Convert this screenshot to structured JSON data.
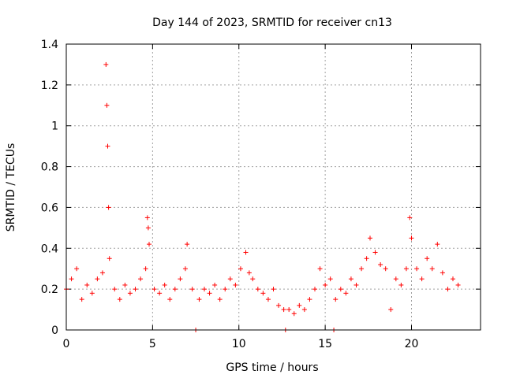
{
  "chart_data": {
    "type": "scatter",
    "title": "Day 144 of 2023, SRMTID for receiver cn13",
    "xlabel": "GPS time / hours",
    "ylabel": "SRMTID / TECUs",
    "xlim": [
      0,
      24
    ],
    "ylim": [
      0,
      1.4
    ],
    "x_ticks": [
      0,
      5,
      10,
      15,
      20
    ],
    "x_tick_labels": [
      "0",
      "5",
      "10",
      "15",
      "20"
    ],
    "y_ticks": [
      0,
      0.2,
      0.4,
      0.6,
      0.8,
      1.0,
      1.2,
      1.4
    ],
    "y_tick_labels": [
      "0",
      "0.2",
      "0.4",
      "0.6",
      "0.8",
      "1",
      "1.2",
      "1.4"
    ],
    "grid": true,
    "marker": "plus",
    "series": [
      {
        "name": "SRMTID",
        "color": "#ff0000",
        "x": [
          0.0,
          0.3,
          0.6,
          0.9,
          1.2,
          1.5,
          1.8,
          2.1,
          2.3,
          2.35,
          2.4,
          2.45,
          2.5,
          2.8,
          3.1,
          3.4,
          3.7,
          4.0,
          4.3,
          4.6,
          4.7,
          4.75,
          4.8,
          5.1,
          5.4,
          5.7,
          6.0,
          6.3,
          6.6,
          6.9,
          7.0,
          7.3,
          7.5,
          7.7,
          8.0,
          8.3,
          8.6,
          8.9,
          9.2,
          9.5,
          9.8,
          10.1,
          10.4,
          10.6,
          10.8,
          11.1,
          11.4,
          11.7,
          12.0,
          12.3,
          12.6,
          12.7,
          12.9,
          13.2,
          13.5,
          13.8,
          14.1,
          14.4,
          14.7,
          15.0,
          15.3,
          15.5,
          15.6,
          15.9,
          16.2,
          16.5,
          16.8,
          17.1,
          17.4,
          17.6,
          17.9,
          18.2,
          18.5,
          18.8,
          19.1,
          19.4,
          19.7,
          19.9,
          20.0,
          20.3,
          20.6,
          20.9,
          21.2,
          21.5,
          21.8,
          22.1,
          22.4,
          22.7
        ],
        "y": [
          0.2,
          0.25,
          0.3,
          0.15,
          0.22,
          0.18,
          0.25,
          0.28,
          1.3,
          1.1,
          0.9,
          0.6,
          0.35,
          0.2,
          0.15,
          0.22,
          0.18,
          0.2,
          0.25,
          0.3,
          0.55,
          0.5,
          0.42,
          0.2,
          0.18,
          0.22,
          0.15,
          0.2,
          0.25,
          0.3,
          0.42,
          0.2,
          0.0,
          0.15,
          0.2,
          0.18,
          0.22,
          0.15,
          0.2,
          0.25,
          0.22,
          0.3,
          0.38,
          0.28,
          0.25,
          0.2,
          0.18,
          0.15,
          0.2,
          0.12,
          0.1,
          0.0,
          0.1,
          0.08,
          0.12,
          0.1,
          0.15,
          0.2,
          0.3,
          0.22,
          0.25,
          0.0,
          0.15,
          0.2,
          0.18,
          0.25,
          0.22,
          0.3,
          0.35,
          0.45,
          0.38,
          0.32,
          0.3,
          0.1,
          0.25,
          0.22,
          0.3,
          0.55,
          0.45,
          0.3,
          0.25,
          0.35,
          0.3,
          0.42,
          0.28,
          0.2,
          0.25,
          0.22
        ]
      }
    ]
  }
}
